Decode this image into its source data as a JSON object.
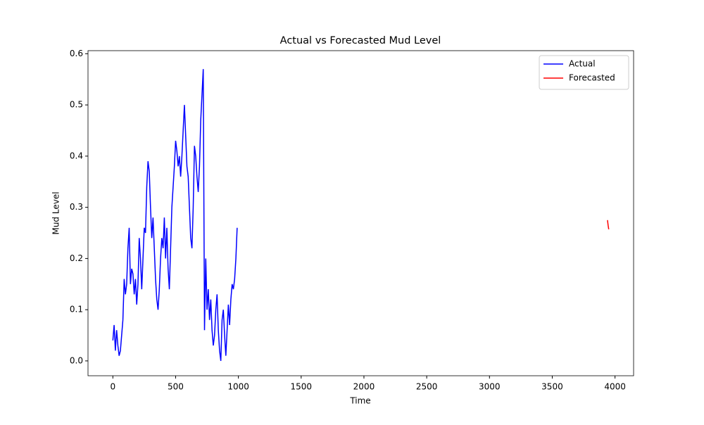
{
  "chart_data": {
    "type": "line",
    "title": "Actual vs Forecasted Mud Level",
    "x_label": "Time",
    "y_label": "Mud Level",
    "xlim": [
      -198,
      4148
    ],
    "ylim": [
      -0.029,
      0.606
    ],
    "xticks": [
      0,
      500,
      1000,
      1500,
      2000,
      2500,
      3000,
      3500,
      4000
    ],
    "yticks": [
      {
        "value": 0,
        "label": "0.0"
      },
      0.1,
      0.2,
      0.3,
      0.4,
      0.5,
      0.6
    ],
    "legend": "upper right",
    "series": [
      {
        "name": "Actual",
        "color": "#0000ff",
        "x": [
          0,
          10,
          20,
          30,
          40,
          50,
          60,
          70,
          80,
          90,
          100,
          110,
          120,
          130,
          140,
          150,
          160,
          170,
          180,
          190,
          200,
          210,
          220,
          230,
          240,
          250,
          260,
          270,
          280,
          290,
          300,
          310,
          320,
          330,
          340,
          350,
          360,
          370,
          380,
          390,
          400,
          410,
          420,
          430,
          440,
          450,
          460,
          470,
          480,
          490,
          500,
          510,
          520,
          530,
          540,
          550,
          560,
          570,
          580,
          590,
          600,
          610,
          620,
          630,
          640,
          650,
          660,
          670,
          680,
          690,
          700,
          710,
          720,
          730,
          740,
          750,
          760,
          770,
          780,
          790,
          800,
          810,
          820,
          830,
          840,
          850,
          860,
          870,
          880,
          890,
          900,
          910,
          920,
          930,
          940,
          950,
          960,
          970,
          980,
          990
        ],
        "values": [
          0.04,
          0.07,
          0.02,
          0.06,
          0.03,
          0.01,
          0.02,
          0.05,
          0.08,
          0.16,
          0.13,
          0.15,
          0.22,
          0.26,
          0.15,
          0.18,
          0.17,
          0.13,
          0.16,
          0.11,
          0.15,
          0.24,
          0.2,
          0.14,
          0.2,
          0.26,
          0.25,
          0.34,
          0.39,
          0.37,
          0.3,
          0.24,
          0.28,
          0.22,
          0.16,
          0.12,
          0.1,
          0.14,
          0.2,
          0.24,
          0.22,
          0.28,
          0.2,
          0.26,
          0.18,
          0.14,
          0.22,
          0.3,
          0.34,
          0.38,
          0.43,
          0.41,
          0.38,
          0.4,
          0.36,
          0.4,
          0.45,
          0.5,
          0.44,
          0.38,
          0.36,
          0.3,
          0.24,
          0.22,
          0.3,
          0.42,
          0.4,
          0.36,
          0.33,
          0.38,
          0.47,
          0.52,
          0.57,
          0.06,
          0.2,
          0.1,
          0.14,
          0.08,
          0.12,
          0.06,
          0.03,
          0.05,
          0.1,
          0.13,
          0.06,
          0.02,
          0.0,
          0.08,
          0.1,
          0.05,
          0.01,
          0.06,
          0.11,
          0.07,
          0.12,
          0.15,
          0.14,
          0.16,
          0.2,
          0.26
        ]
      },
      {
        "name": "Forecasted",
        "color": "#ff0000",
        "x": [
          3940,
          3945,
          3950
        ],
        "values": [
          0.275,
          0.265,
          0.257
        ]
      }
    ]
  }
}
